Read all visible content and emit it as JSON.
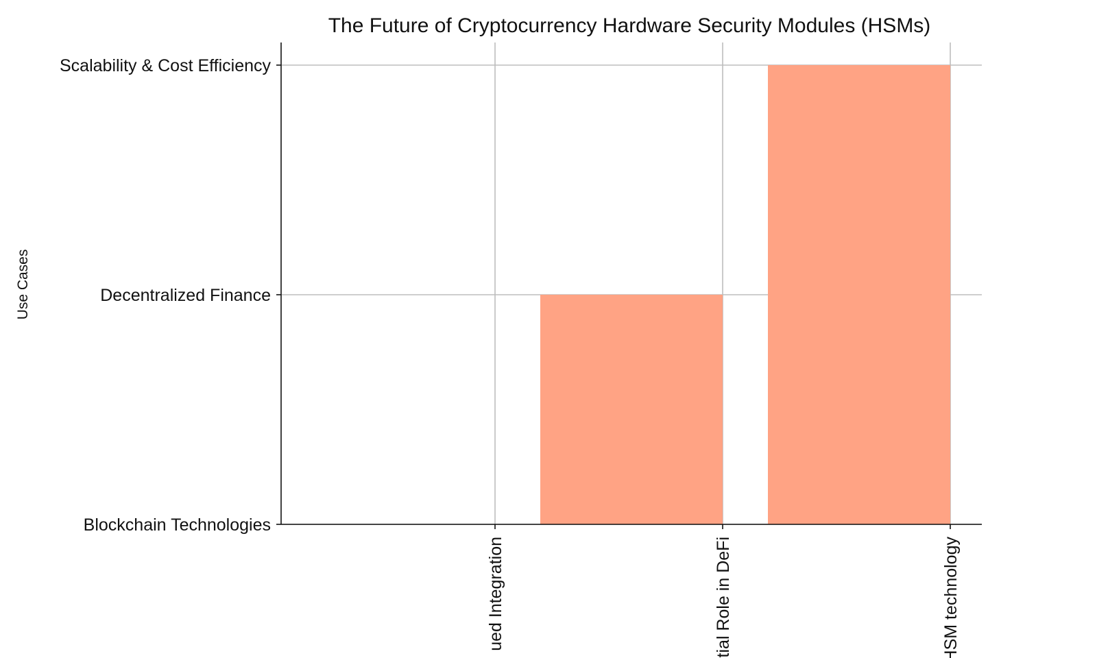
{
  "chart_data": {
    "type": "bar",
    "title": "The Future of Cryptocurrency Hardware Security Modules (HSMs)",
    "xlabel": "",
    "ylabel": "Use Cases",
    "categories": [
      "Continued Integration",
      "Potential Role in DeFi",
      "Advancements in HSM technology"
    ],
    "visible_x_tick_text": [
      "ued Integration",
      "tial Role in DeFi",
      "HSM technology"
    ],
    "y_categories": [
      "Blockchain Technologies",
      "Decentralized Finance",
      "Scalability & Cost Efficiency"
    ],
    "values": [
      0,
      1,
      2
    ],
    "ylim": [
      0,
      2
    ],
    "grid": true,
    "bar_color": "#ffa384",
    "bar_alignment": "edge-left"
  }
}
